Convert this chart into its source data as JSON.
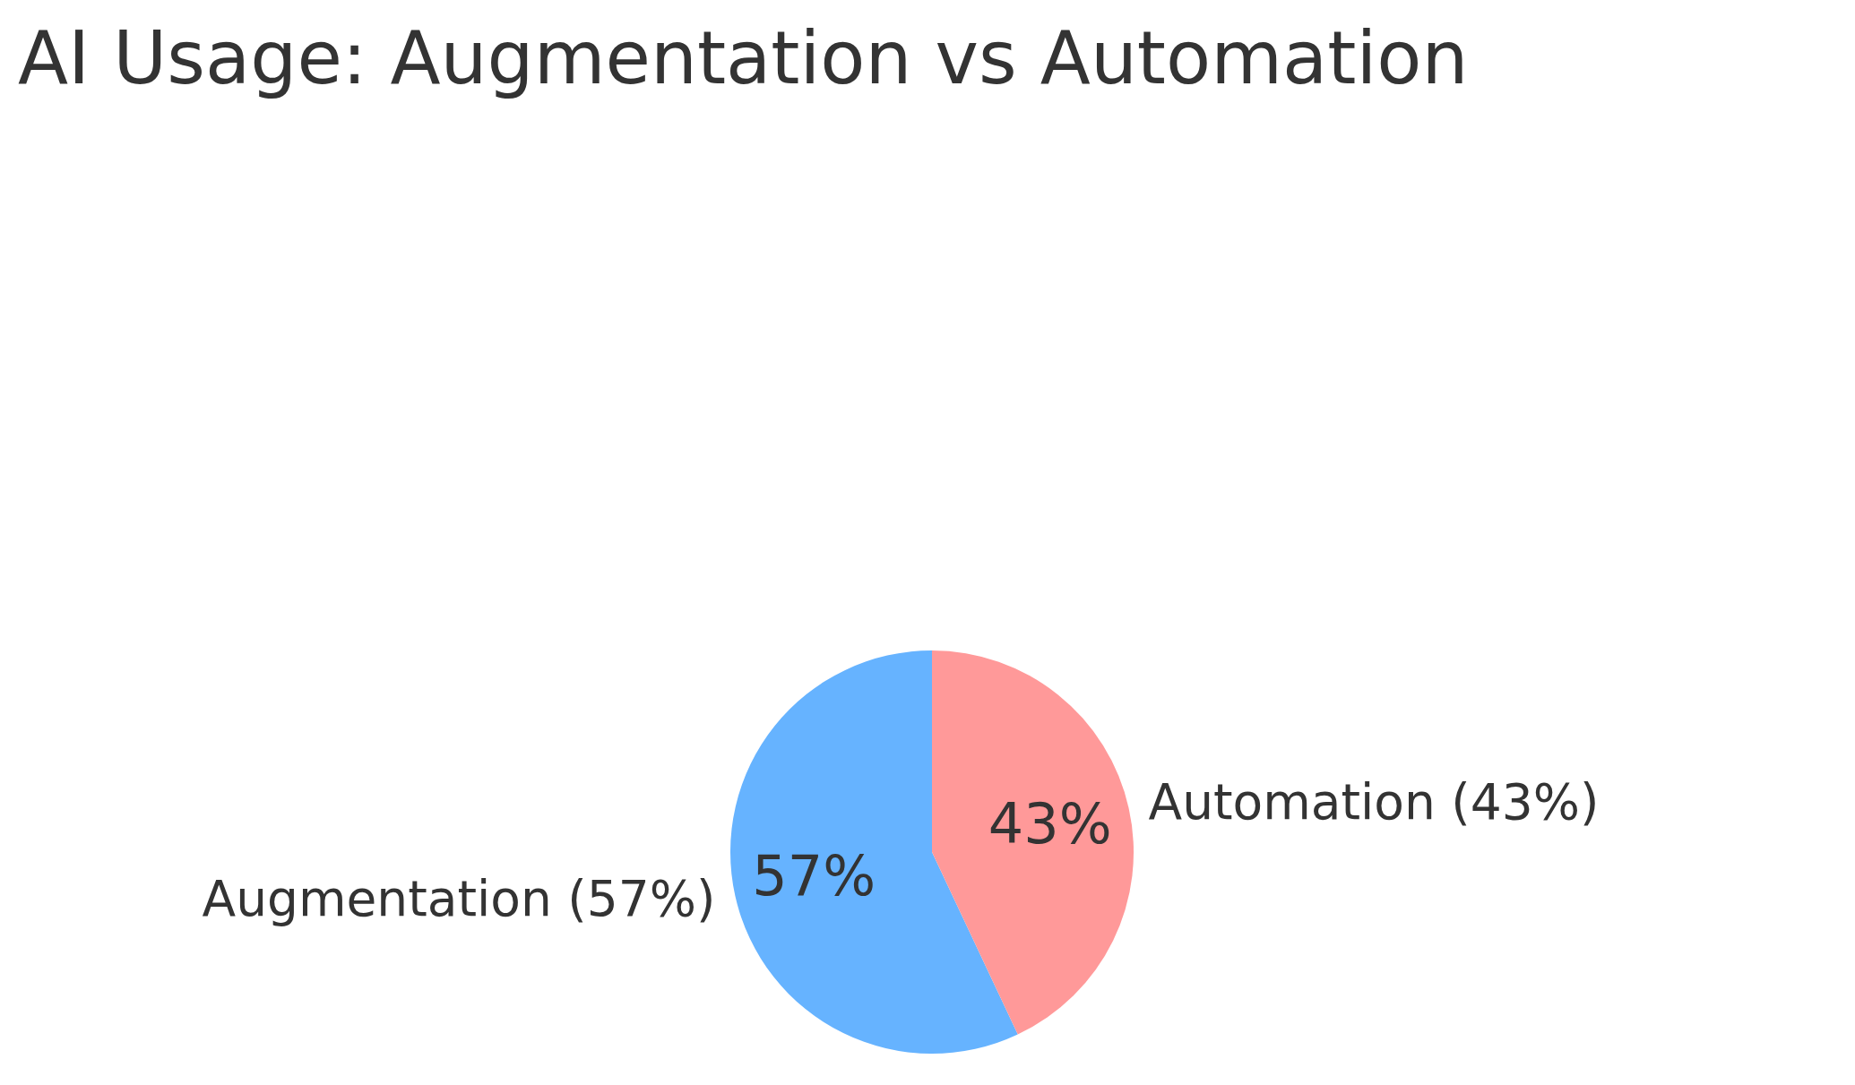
{
  "chart_data": {
    "type": "pie",
    "title": "AI Usage: Augmentation vs Automation",
    "categories": [
      "Augmentation (57%)",
      "Automation (43%)"
    ],
    "values": [
      57,
      43
    ],
    "colors": [
      "#66b3ff",
      "#ff9999"
    ],
    "value_labels": [
      "57%",
      "43%"
    ]
  }
}
